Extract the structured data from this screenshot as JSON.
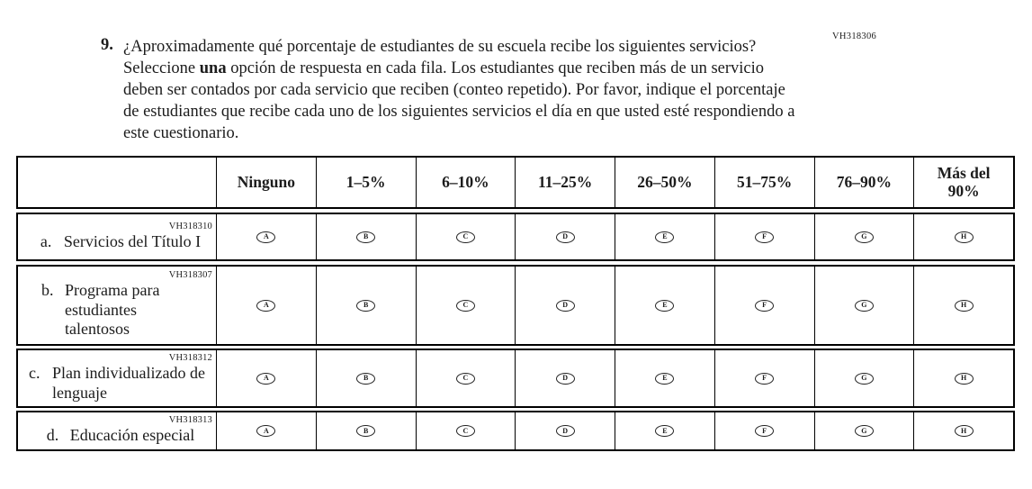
{
  "question": {
    "number": "9.",
    "code": "VH318306",
    "text_before_bold": "¿Aproximadamente qué porcentaje de estudiantes de su escuela recibe los siguientes servicios? Seleccione ",
    "bold_word": "una",
    "text_after_bold": " opción de respuesta en cada fila. Los estudiantes que reciben más de un servicio deben ser contados por cada servicio que reciben (conteo repetido). Por favor, indique el porcentaje de estudiantes que recibe cada uno de los siguientes servicios el día en que usted esté respondiendo a este cuestionario."
  },
  "table": {
    "columns": [
      "Ninguno",
      "1–5%",
      "6–10%",
      "11–25%",
      "26–50%",
      "51–75%",
      "76–90%",
      "Más del 90%"
    ],
    "options": [
      "A",
      "B",
      "C",
      "D",
      "E",
      "F",
      "G",
      "H"
    ],
    "rows": [
      {
        "code": "VH318310",
        "letter": "a.",
        "label": "Servicios del Título I"
      },
      {
        "code": "VH318307",
        "letter": "b.",
        "label": "Programa para estudiantes talentosos"
      },
      {
        "code": "VH318312",
        "letter": "c.",
        "label": "Plan individualizado de lenguaje"
      },
      {
        "code": "VH318313",
        "letter": "d.",
        "label": "Educación especial"
      }
    ]
  }
}
